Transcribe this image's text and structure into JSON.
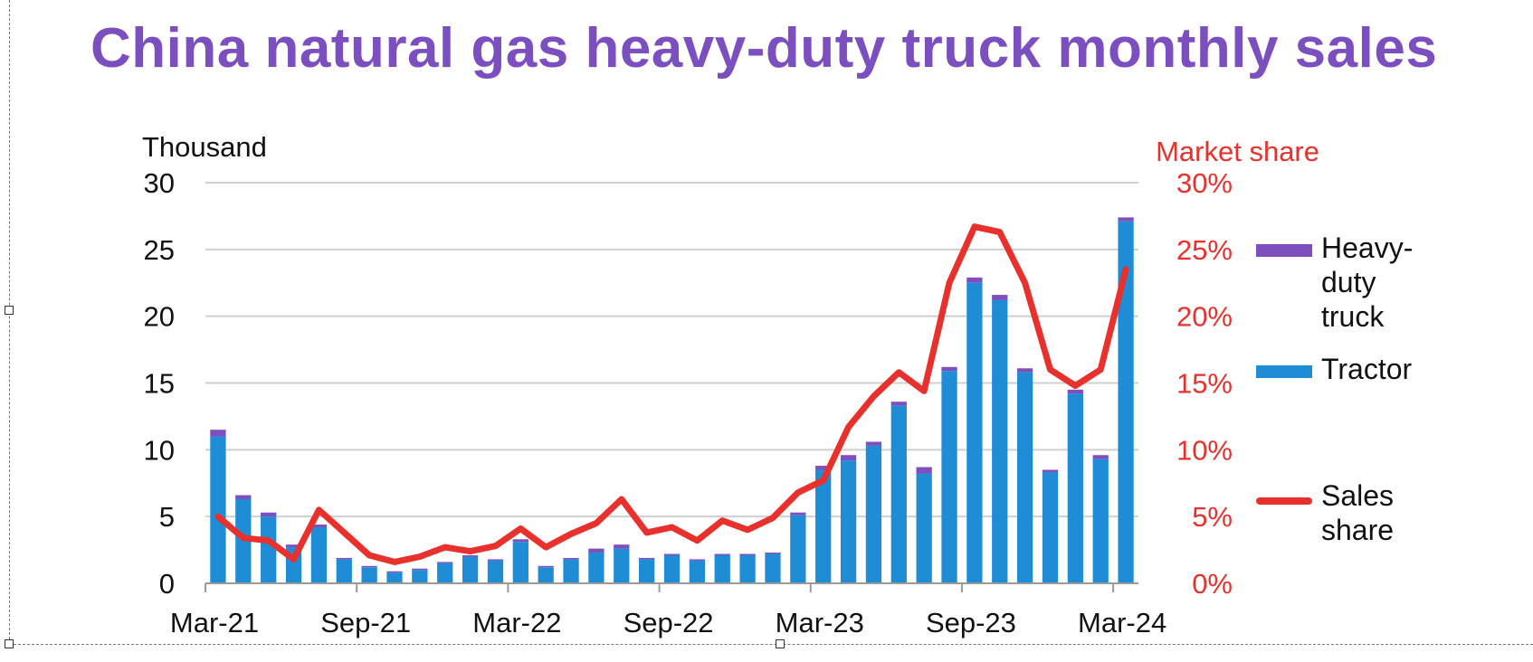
{
  "title": "China natural gas heavy-duty truck monthly sales",
  "chart_data": {
    "type": "bar",
    "stacked": true,
    "left_axis_label": "Thousand",
    "right_axis_label": "Market share",
    "ylim": [
      0,
      30
    ],
    "y_ticks": [
      "0",
      "5",
      "10",
      "15",
      "20",
      "25",
      "30"
    ],
    "y2lim": [
      0,
      30
    ],
    "y2_ticks": [
      "0%",
      "5%",
      "10%",
      "15%",
      "20%",
      "25%",
      "30%"
    ],
    "x_tick_labels": [
      "Mar-21",
      "Sep-21",
      "Mar-22",
      "Sep-22",
      "Mar-23",
      "Sep-23",
      "Mar-24"
    ],
    "x_tick_index": [
      0,
      6,
      12,
      18,
      24,
      30,
      36
    ],
    "categories": [
      "Mar-21",
      "Apr-21",
      "May-21",
      "Jun-21",
      "Jul-21",
      "Aug-21",
      "Sep-21",
      "Oct-21",
      "Nov-21",
      "Dec-21",
      "Jan-22",
      "Feb-22",
      "Mar-22",
      "Apr-22",
      "May-22",
      "Jun-22",
      "Jul-22",
      "Aug-22",
      "Sep-22",
      "Oct-22",
      "Nov-22",
      "Dec-22",
      "Jan-23",
      "Feb-23",
      "Mar-23",
      "Apr-23",
      "May-23",
      "Jun-23",
      "Jul-23",
      "Aug-23",
      "Sep-23",
      "Oct-23",
      "Nov-23",
      "Dec-23",
      "Jan-24",
      "Feb-24",
      "Mar-24"
    ],
    "series": [
      {
        "name": "Tractor",
        "color": "#1f8dd6",
        "values": [
          11.0,
          6.3,
          5.0,
          2.7,
          4.2,
          1.8,
          1.2,
          0.8,
          1.0,
          1.5,
          2.0,
          1.7,
          3.1,
          1.2,
          1.8,
          2.3,
          2.6,
          1.8,
          2.1,
          1.7,
          2.1,
          2.1,
          2.2,
          5.1,
          8.5,
          9.2,
          10.3,
          13.3,
          8.2,
          15.9,
          22.5,
          21.2,
          15.8,
          8.3,
          14.2,
          9.3,
          27.1
        ]
      },
      {
        "name": "Heavy-duty truck",
        "color": "#7d4fbf",
        "values": [
          0.5,
          0.3,
          0.3,
          0.2,
          0.2,
          0.1,
          0.1,
          0.1,
          0.1,
          0.1,
          0.1,
          0.1,
          0.2,
          0.1,
          0.1,
          0.3,
          0.3,
          0.1,
          0.1,
          0.1,
          0.1,
          0.1,
          0.1,
          0.2,
          0.3,
          0.4,
          0.3,
          0.3,
          0.5,
          0.3,
          0.4,
          0.4,
          0.3,
          0.2,
          0.3,
          0.3,
          0.3
        ]
      },
      {
        "name": "Sales share",
        "type": "line",
        "axis": "right",
        "unit": "%",
        "color": "#e8312c",
        "values": [
          5.0,
          3.4,
          3.2,
          1.8,
          5.5,
          3.8,
          2.1,
          1.6,
          2.0,
          2.7,
          2.4,
          2.8,
          4.1,
          2.7,
          3.7,
          4.5,
          6.3,
          3.8,
          4.2,
          3.2,
          4.7,
          4.0,
          4.9,
          6.8,
          7.7,
          11.7,
          14.0,
          15.8,
          14.4,
          22.5,
          26.7,
          26.3,
          22.5,
          16.0,
          14.8,
          16.0,
          23.5
        ]
      }
    ],
    "legend_position": "right",
    "grid": true
  },
  "legend": {
    "heavy_duty_truck": "Heavy-duty truck",
    "tractor": "Tractor",
    "sales_share": "Sales share"
  }
}
